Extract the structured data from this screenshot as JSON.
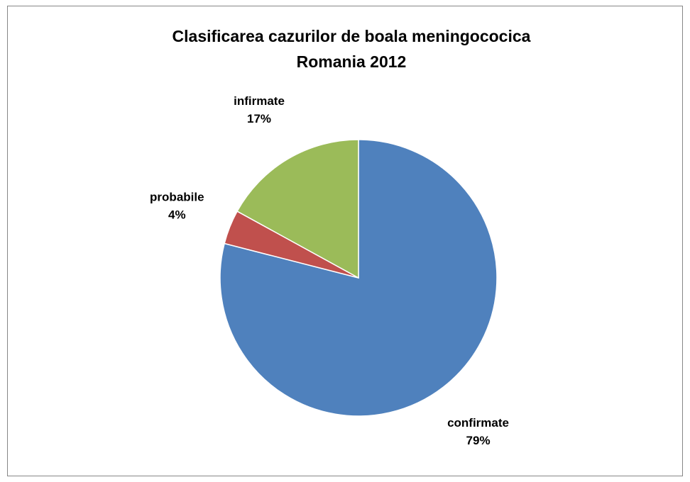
{
  "chart_data": {
    "type": "pie",
    "title": [
      "Clasificarea cazurilor de boala meningococica",
      "Romania 2012"
    ],
    "categories": [
      "confirmate",
      "probabile",
      "infirmate"
    ],
    "values": [
      79,
      4,
      17
    ],
    "value_labels": [
      "79%",
      "4%",
      "17%"
    ],
    "colors": [
      "#4f81bd",
      "#c0504d",
      "#9bbb59"
    ]
  }
}
